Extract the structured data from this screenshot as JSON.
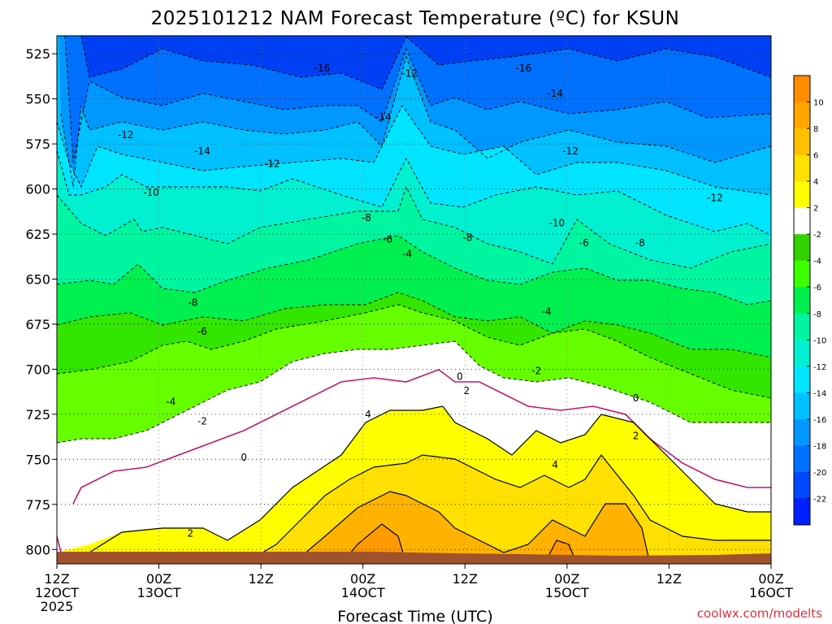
{
  "chart_data": {
    "type": "heatmap",
    "title": "2025101212 NAM Forecast Temperature (ºC) for KSUN",
    "xlabel": "Forecast Time (UTC)",
    "ylabel": "",
    "y_ticks": [
      525,
      550,
      575,
      600,
      625,
      650,
      675,
      700,
      725,
      750,
      775,
      800
    ],
    "ylim_hpa": [
      515,
      808
    ],
    "x_hours_range": [
      0,
      84
    ],
    "x_ticks": [
      {
        "hour": 0,
        "line1": "12Z",
        "line2": "12OCT",
        "line3": "2025"
      },
      {
        "hour": 12,
        "line1": "00Z",
        "line2": "13OCT",
        "line3": ""
      },
      {
        "hour": 24,
        "line1": "12Z",
        "line2": "",
        "line3": ""
      },
      {
        "hour": 36,
        "line1": "00Z",
        "line2": "14OCT",
        "line3": ""
      },
      {
        "hour": 48,
        "line1": "12Z",
        "line2": "",
        "line3": ""
      },
      {
        "hour": 60,
        "line1": "00Z",
        "line2": "15OCT",
        "line3": ""
      },
      {
        "hour": 72,
        "line1": "12Z",
        "line2": "",
        "line3": ""
      },
      {
        "hour": 84,
        "line1": "00Z",
        "line2": "16OCT",
        "line3": ""
      }
    ],
    "colorbar": {
      "labels": [
        "10",
        "8",
        "6",
        "4",
        "2",
        "-2",
        "-4",
        "-6",
        "-8",
        "-10",
        "-12",
        "-14",
        "-16",
        "-18",
        "-20",
        "-22"
      ],
      "colors": [
        "#ff8c00",
        "#ffa500",
        "#ffc000",
        "#ffe000",
        "#ffff00",
        "#ffffff",
        "#32d200",
        "#3cff00",
        "#00f050",
        "#00f5a0",
        "#00f0d0",
        "#00e5ff",
        "#00c0ff",
        "#0098ff",
        "#0070ff",
        "#0048ff",
        "#0020ff"
      ]
    },
    "level_colors": {
      "lt_-20": "#0040f5",
      "-20": "#0070ff",
      "-18": "#0098ff",
      "-16": "#00c0ff",
      "-14": "#00e5ff",
      "-12": "#00f0d0",
      "-10": "#00f5a0",
      "-8": "#00f050",
      "-6": "#32e600",
      "-4": "#66ff00",
      "-2": "#ffffff",
      "0": "#ffffff",
      "2": "#ffff00",
      "4": "#ffe000",
      "6": "#ffb300",
      "8": "#ff9a00",
      "10": "#ff8c00"
    },
    "contour_labels": [
      {
        "text": "-16",
        "hour": 31.2,
        "hpa": 533
      },
      {
        "text": "-12",
        "hour": 41.5,
        "hpa": 536
      },
      {
        "text": "-16",
        "hour": 54.9,
        "hpa": 533
      },
      {
        "text": "-14",
        "hour": 58.6,
        "hpa": 547
      },
      {
        "text": "-14",
        "hour": 38.4,
        "hpa": 560
      },
      {
        "text": "-12",
        "hour": 8.1,
        "hpa": 570
      },
      {
        "text": "-14",
        "hour": 17.1,
        "hpa": 579
      },
      {
        "text": "-12",
        "hour": 25.3,
        "hpa": 586
      },
      {
        "text": "-12",
        "hour": 60.4,
        "hpa": 579
      },
      {
        "text": "-10",
        "hour": 11.1,
        "hpa": 602
      },
      {
        "text": "-12",
        "hour": 77.4,
        "hpa": 605
      },
      {
        "text": "-8",
        "hour": 36.4,
        "hpa": 616
      },
      {
        "text": "-10",
        "hour": 58.8,
        "hpa": 619
      },
      {
        "text": "-6",
        "hour": 38.9,
        "hpa": 628
      },
      {
        "text": "-8",
        "hour": 48.3,
        "hpa": 627
      },
      {
        "text": "-6",
        "hour": 62.0,
        "hpa": 630
      },
      {
        "text": "-8",
        "hour": 68.6,
        "hpa": 630
      },
      {
        "text": "-4",
        "hour": 41.2,
        "hpa": 636
      },
      {
        "text": "-8",
        "hour": 16.0,
        "hpa": 663
      },
      {
        "text": "-4",
        "hour": 57.6,
        "hpa": 668
      },
      {
        "text": "-6",
        "hour": 17.1,
        "hpa": 679
      },
      {
        "text": "-2",
        "hour": 56.4,
        "hpa": 701
      },
      {
        "text": "0",
        "hour": 47.4,
        "hpa": 704
      },
      {
        "text": "2",
        "hour": 48.2,
        "hpa": 712
      },
      {
        "text": "0",
        "hour": 68.1,
        "hpa": 716
      },
      {
        "text": "-4",
        "hour": 13.4,
        "hpa": 718
      },
      {
        "text": "4",
        "hour": 36.6,
        "hpa": 725
      },
      {
        "text": "-2",
        "hour": 17.1,
        "hpa": 729
      },
      {
        "text": "2",
        "hour": 68.1,
        "hpa": 737
      },
      {
        "text": "0",
        "hour": 22.0,
        "hpa": 749
      },
      {
        "text": "4",
        "hour": 58.6,
        "hpa": 753
      },
      {
        "text": "2",
        "hour": 15.7,
        "hpa": 791
      }
    ],
    "grid": true
  },
  "credit": "coolwx.com/modelts"
}
